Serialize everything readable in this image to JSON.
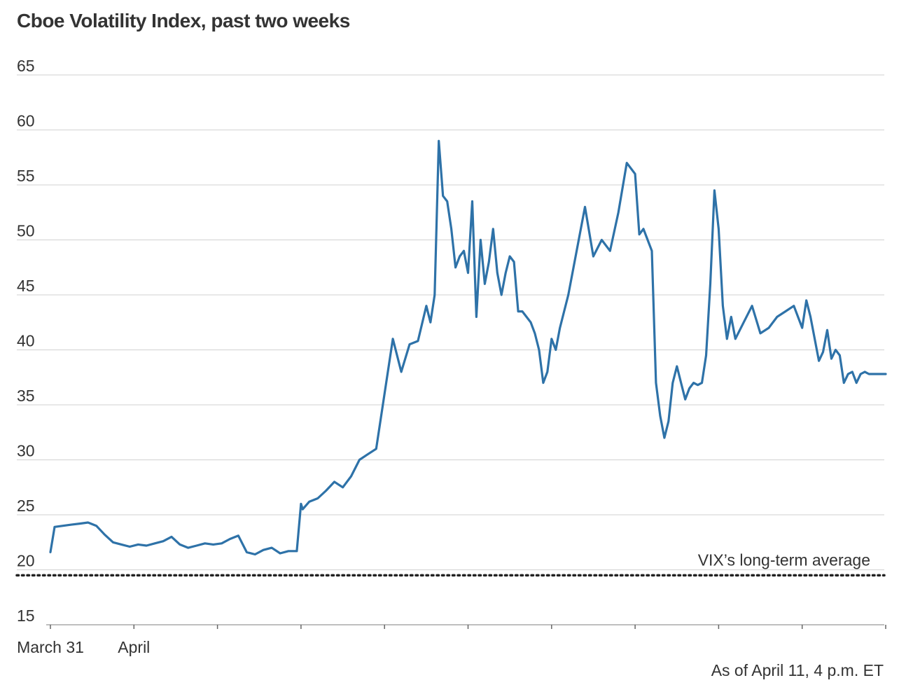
{
  "chart_data": {
    "type": "line",
    "title": "Cboe Volatility Index, past two weeks",
    "note": "As of April 11, 4 p.m. ET",
    "ylim": [
      15,
      65
    ],
    "yticks": [
      15,
      20,
      25,
      30,
      35,
      40,
      45,
      50,
      55,
      60,
      65
    ],
    "xtick_labels": [
      {
        "index": 0,
        "label": "March 31"
      },
      {
        "index": 1,
        "label": "April"
      },
      {
        "index": 2,
        "label": ""
      },
      {
        "index": 3,
        "label": ""
      },
      {
        "index": 4,
        "label": ""
      },
      {
        "index": 5,
        "label": ""
      },
      {
        "index": 6,
        "label": ""
      },
      {
        "index": 7,
        "label": ""
      },
      {
        "index": 8,
        "label": ""
      },
      {
        "index": 9,
        "label": ""
      },
      {
        "index": 10,
        "label": ""
      }
    ],
    "xlim": [
      0,
      10
    ],
    "grid": true,
    "line_color": "#2e72a8",
    "reference_line": {
      "value": 19.5,
      "label": "VIX’s long-term average",
      "style": "dotted"
    },
    "series": [
      {
        "x": [
          0,
          0.05,
          0.15,
          0.25,
          0.35,
          0.45,
          0.55,
          0.65,
          0.75,
          0.85,
          0.95,
          1.05,
          1.15,
          1.25,
          1.35,
          1.45,
          1.55,
          1.65,
          1.75,
          1.85,
          1.95,
          2.05,
          2.15,
          2.25,
          2.35,
          2.45,
          2.55,
          2.65,
          2.75,
          2.85,
          2.95,
          3.0,
          3.02,
          3.1,
          3.2,
          3.3,
          3.4,
          3.5,
          3.6,
          3.7,
          3.8,
          3.9,
          4.0,
          4.1,
          4.2,
          4.3,
          4.4,
          4.5,
          4.55,
          4.6,
          4.65,
          4.7,
          4.75,
          4.8,
          4.85,
          4.9,
          4.95,
          5.0,
          5.05,
          5.1,
          5.15,
          5.2,
          5.25,
          5.3,
          5.35,
          5.4,
          5.45,
          5.5,
          5.55,
          5.6,
          5.65,
          5.7,
          5.75,
          5.8,
          5.85,
          5.9,
          5.95,
          6.0,
          6.05,
          6.1,
          6.2,
          6.3,
          6.4,
          6.5,
          6.6,
          6.7,
          6.8,
          6.9,
          7.0,
          7.05,
          7.1,
          7.15,
          7.2,
          7.25,
          7.3,
          7.35,
          7.4,
          7.45,
          7.5,
          7.55,
          7.6,
          7.65,
          7.7,
          7.75,
          7.8,
          7.85,
          7.9,
          7.95,
          8.0,
          8.05,
          8.1,
          8.15,
          8.2,
          8.3,
          8.4,
          8.5,
          8.6,
          8.7,
          8.8,
          8.9,
          9.0,
          9.05,
          9.1,
          9.15,
          9.2,
          9.25,
          9.3,
          9.35,
          9.4,
          9.45,
          9.5,
          9.55,
          9.6,
          9.65,
          9.7,
          9.75,
          9.8,
          9.85,
          9.9,
          9.95,
          10.0
        ],
        "y": [
          21.6,
          23.9,
          24.0,
          24.1,
          24.2,
          24.3,
          24.0,
          23.2,
          22.5,
          22.3,
          22.1,
          22.3,
          22.2,
          22.4,
          22.6,
          23.0,
          22.3,
          22.0,
          22.2,
          22.4,
          22.3,
          22.4,
          22.8,
          23.1,
          21.6,
          21.4,
          21.8,
          22.0,
          21.5,
          21.7,
          21.7,
          26.0,
          25.5,
          26.2,
          26.5,
          27.2,
          28.0,
          27.5,
          28.5,
          30.0,
          30.5,
          31.0,
          36.0,
          41.0,
          38.0,
          40.5,
          40.8,
          44.0,
          42.5,
          45.0,
          59.0,
          54.0,
          53.5,
          51.0,
          47.5,
          48.5,
          49.0,
          47.0,
          53.5,
          43.0,
          50.0,
          46.0,
          48.0,
          51.0,
          47.0,
          45.0,
          47.0,
          48.5,
          48.0,
          43.5,
          43.5,
          43.0,
          42.5,
          41.5,
          40.0,
          37.0,
          38.0,
          41.0,
          40.0,
          42.0,
          45.0,
          49.0,
          53.0,
          48.5,
          50.0,
          49.0,
          52.5,
          57.0,
          56.0,
          50.5,
          51.0,
          50.0,
          49.0,
          37.0,
          34.0,
          32.0,
          33.5,
          37.0,
          38.5,
          37.0,
          35.5,
          36.5,
          37.0,
          36.8,
          37.0,
          39.5,
          46.0,
          54.5,
          51.0,
          44.0,
          41.0,
          43.0,
          41.0,
          42.5,
          44.0,
          41.5,
          42.0,
          43.0,
          43.5,
          44.0,
          42.0,
          44.5,
          43.0,
          41.0,
          39.0,
          39.8,
          41.8,
          39.2,
          40.0,
          39.5,
          37.0,
          37.8,
          38.0,
          37.0,
          37.8,
          38.0,
          37.8,
          37.8,
          37.8,
          37.8,
          37.8
        ]
      }
    ]
  }
}
